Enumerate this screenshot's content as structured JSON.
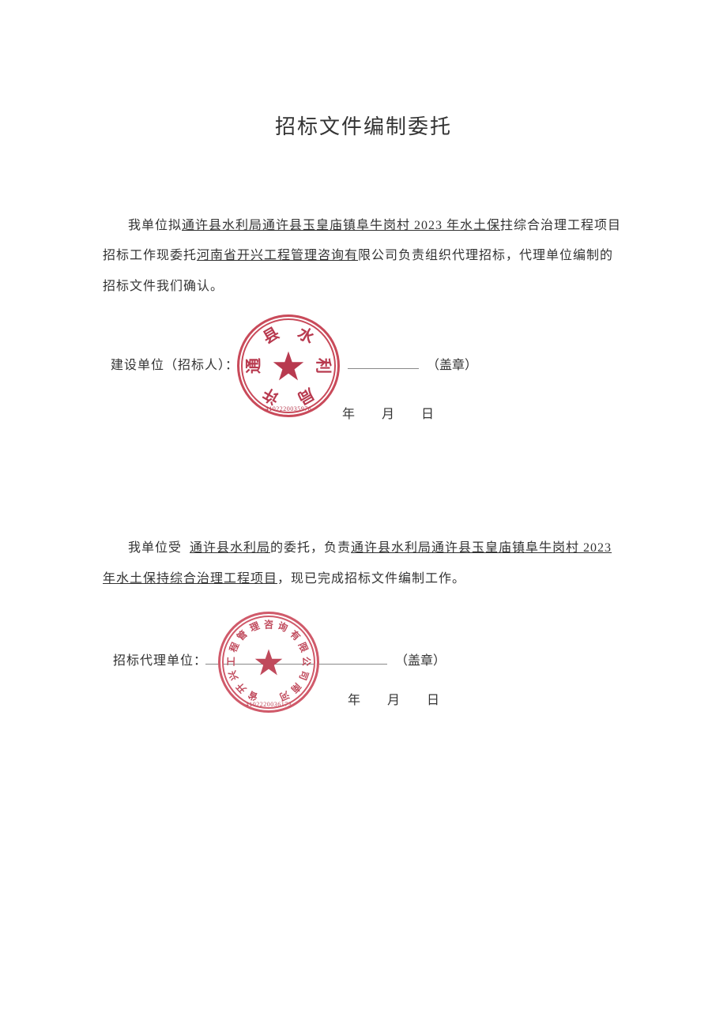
{
  "title": "招标文件编制委托",
  "para1_prefix": "我单位拟",
  "para1_u1": "通许县水利局通许县玉皇庙镇阜牛岗村 2023 年水土保",
  "para1_mid1": "拄综合治理工程项目招标工作现委托",
  "para1_u2": "河南省开兴工程管理咨询有",
  "para1_suffix": "限公司负责组织代理招标，代理单位编制的招标文件我们确认。",
  "sig1_label": "建设单位（招标人）：",
  "sig1_suffix": "（盖章）",
  "date_year_label": "年",
  "date_month_label": "月",
  "date_day_label": "日",
  "para2_prefix": "我单位受",
  "para2_u1": "通许县水利局",
  "para2_mid1": "的委托，负责",
  "para2_u2": "通许县水利局通许县玉皇庙镇阜牛岗村 2023 年水土保持综合治理工程项目",
  "para2_suffix": "，现已完成招标文件编制工作。",
  "sig2_label": "招标代理单位：",
  "sig2_suffix": "（盖章）",
  "stamp1": {
    "color": "#c94a5a",
    "color_dark": "#b83a4f",
    "outer_diameter": 130,
    "inner_diameter": 118,
    "star_size": 40,
    "chars": [
      "县",
      "水",
      "利",
      "局",
      "许",
      "通"
    ],
    "number": "4102220035976"
  },
  "stamp2": {
    "color": "#d05a6a",
    "color_dark": "#c04a5c",
    "outer_diameter": 128,
    "inner_diameter": 116,
    "star_size": 36,
    "chars": [
      "省",
      "开",
      "兴",
      "工",
      "程",
      "管",
      "理",
      "咨",
      "询",
      "有",
      "限",
      "公",
      "司",
      "南",
      "河"
    ],
    "number": "4102220036173"
  },
  "colors": {
    "text": "#333333",
    "line": "#888888",
    "bg": "#ffffff"
  },
  "fontsize_title": 26,
  "fontsize_body": 16
}
